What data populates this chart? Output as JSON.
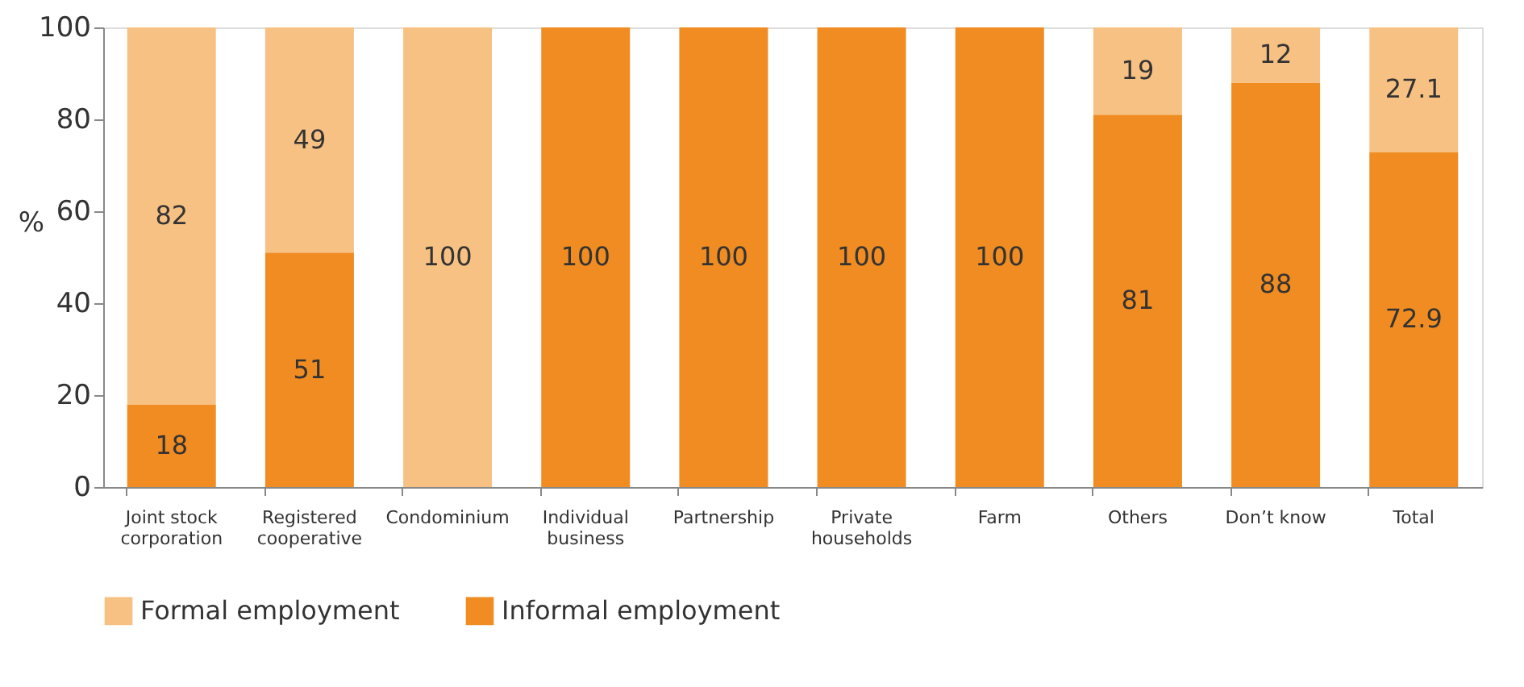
{
  "chart_data": {
    "type": "bar",
    "stacked": true,
    "ylabel": "%",
    "categories": [
      "Joint stock corporation",
      "Registered cooperative",
      "Condominium",
      "Individual business",
      "Partnership",
      "Private households",
      "Farm",
      "Others",
      "Don’t know",
      "Total"
    ],
    "series": [
      {
        "name": "Informal employment",
        "color": "#f08c21",
        "values": [
          18,
          51,
          0,
          100,
          100,
          100,
          100,
          81,
          88,
          72.9
        ],
        "value_labels": [
          "18",
          "51",
          null,
          "100",
          "100",
          "100",
          "100",
          "81",
          "88",
          "72.9"
        ]
      },
      {
        "name": "Formal employment",
        "color": "#f8c184",
        "values": [
          82,
          49,
          100,
          0,
          0,
          0,
          0,
          19,
          12,
          27.1
        ],
        "value_labels": [
          "82",
          "49",
          "100",
          null,
          null,
          null,
          null,
          "19",
          "12",
          "27.1"
        ]
      }
    ],
    "ylim": [
      0,
      100
    ],
    "yticks": [
      0,
      20,
      40,
      60,
      80,
      100
    ],
    "grid": false,
    "legend": "bottom"
  }
}
